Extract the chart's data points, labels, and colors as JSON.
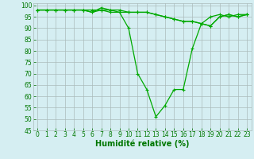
{
  "xlabel": "Humidité relative (%)",
  "x": [
    0,
    1,
    2,
    3,
    4,
    5,
    6,
    7,
    8,
    9,
    10,
    11,
    12,
    13,
    14,
    15,
    16,
    17,
    18,
    19,
    20,
    21,
    22,
    23
  ],
  "series": [
    [
      98,
      98,
      98,
      98,
      98,
      98,
      97,
      98,
      97,
      97,
      97,
      97,
      97,
      96,
      95,
      94,
      93,
      93,
      92,
      91,
      95,
      96,
      95,
      96
    ],
    [
      98,
      98,
      98,
      98,
      98,
      98,
      97,
      99,
      98,
      98,
      97,
      97,
      97,
      96,
      95,
      94,
      93,
      93,
      92,
      91,
      95,
      96,
      95,
      96
    ],
    [
      98,
      98,
      98,
      98,
      98,
      98,
      98,
      98,
      98,
      97,
      90,
      70,
      63,
      51,
      56,
      63,
      63,
      81,
      92,
      95,
      96,
      95,
      96,
      96
    ]
  ],
  "line_color": "#00aa00",
  "marker": "+",
  "markersize": 3,
  "linewidth": 0.9,
  "ylim": [
    45,
    101
  ],
  "xlim": [
    -0.5,
    23.5
  ],
  "yticks": [
    45,
    50,
    55,
    60,
    65,
    70,
    75,
    80,
    85,
    90,
    95,
    100
  ],
  "xticks": [
    0,
    1,
    2,
    3,
    4,
    5,
    6,
    7,
    8,
    9,
    10,
    11,
    12,
    13,
    14,
    15,
    16,
    17,
    18,
    19,
    20,
    21,
    22,
    23
  ],
  "bg_color": "#d5eef2",
  "grid_color": "#aabbbb",
  "tick_label_color": "#007700",
  "xlabel_color": "#007700",
  "xlabel_fontsize": 7,
  "tick_fontsize": 5.5
}
